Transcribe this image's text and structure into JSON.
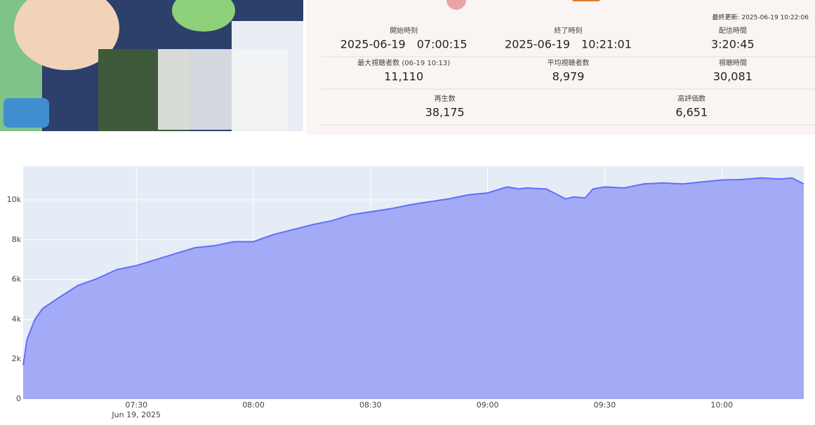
{
  "stats": {
    "updated": "最終更新: 2025-06-19 10:22:06",
    "rows": [
      [
        {
          "label": "開始時刻",
          "value": "2025-06-19　07:00:15"
        },
        {
          "label": "終了時刻",
          "value": "2025-06-19　10:21:01"
        },
        {
          "label": "配信時間",
          "value": "3:20:45"
        }
      ],
      [
        {
          "label": "最大視聴者数 (06-19 10:13)",
          "value": "11,110"
        },
        {
          "label": "平均視聴者数",
          "value": "8,979"
        },
        {
          "label": "視聴時間",
          "value": "30,081"
        }
      ],
      [
        {
          "label": "再生数",
          "value": "38,175"
        },
        {
          "label": "高評価数",
          "value": "6,651"
        }
      ]
    ]
  },
  "chart_data": {
    "type": "area",
    "x": [
      "07:01",
      "07:02",
      "07:04",
      "07:06",
      "07:10",
      "07:15",
      "07:20",
      "07:25",
      "07:30",
      "07:35",
      "07:40",
      "07:45",
      "07:50",
      "07:55",
      "08:00",
      "08:05",
      "08:10",
      "08:15",
      "08:20",
      "08:25",
      "08:30",
      "08:35",
      "08:40",
      "08:45",
      "08:50",
      "08:55",
      "09:00",
      "09:05",
      "09:08",
      "09:10",
      "09:15",
      "09:20",
      "09:22",
      "09:25",
      "09:27",
      "09:30",
      "09:35",
      "09:40",
      "09:45",
      "09:50",
      "09:55",
      "10:00",
      "10:05",
      "10:10",
      "10:15",
      "10:18",
      "10:21"
    ],
    "values": [
      1700,
      3000,
      4000,
      4550,
      5070,
      5700,
      6050,
      6500,
      6700,
      7000,
      7300,
      7600,
      7700,
      7900,
      7900,
      8250,
      8500,
      8750,
      8950,
      9250,
      9400,
      9550,
      9750,
      9900,
      10050,
      10250,
      10350,
      10650,
      10550,
      10600,
      10550,
      10050,
      10150,
      10100,
      10550,
      10650,
      10600,
      10800,
      10850,
      10800,
      10900,
      11000,
      11020,
      11100,
      11050,
      11100,
      10800
    ],
    "color": "#636efa",
    "fill": "#a3aaf6",
    "xlim": [
      "07:01",
      "10:21"
    ],
    "xticks": [
      "07:30",
      "08:00",
      "08:30",
      "09:00",
      "09:30",
      "10:00"
    ],
    "x_date": "Jun 19, 2025",
    "ylim": [
      0,
      11690
    ],
    "yticks": [
      0,
      {
        "value": 2000,
        "label": "2k"
      },
      {
        "value": 4000,
        "label": "4k"
      },
      {
        "value": 6000,
        "label": "6k"
      },
      {
        "value": 8000,
        "label": "8k"
      },
      {
        "value": 10000,
        "label": "10k"
      }
    ],
    "grid": true
  }
}
